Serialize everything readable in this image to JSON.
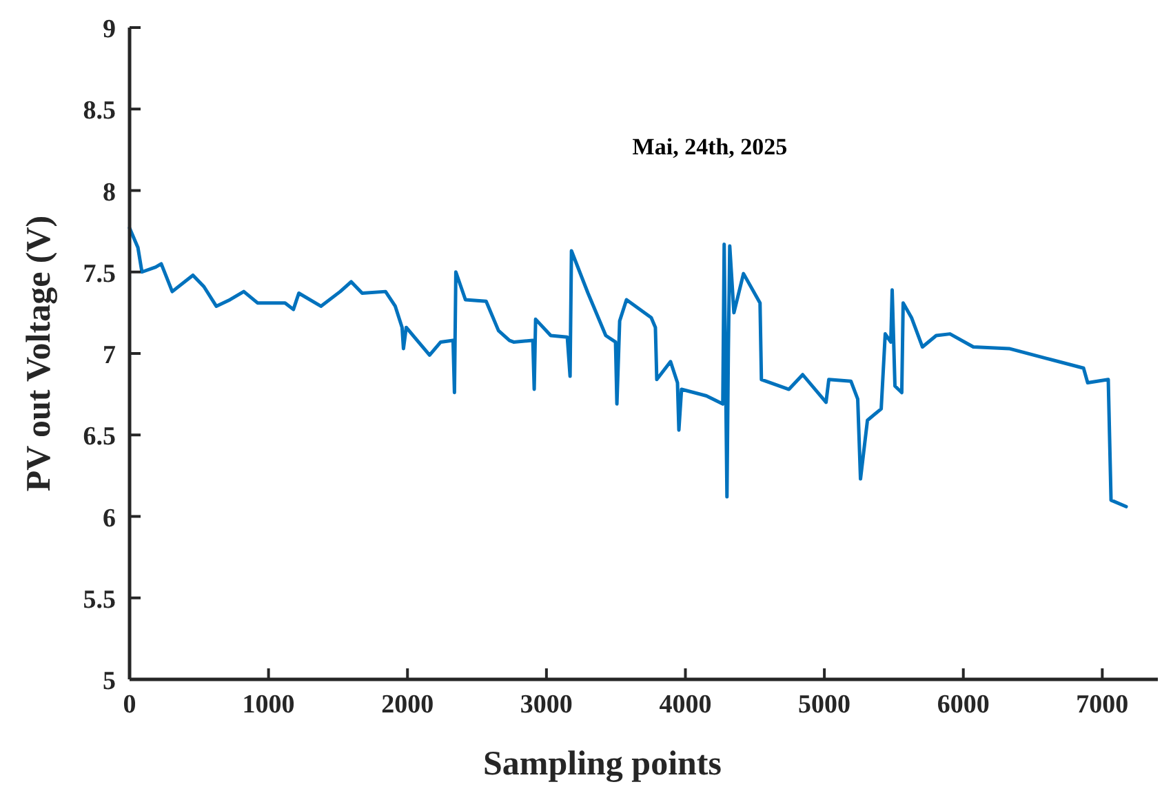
{
  "chart_data": {
    "type": "line",
    "xlabel": "Sampling points",
    "ylabel": "PV out Voltage (V)",
    "annotations": [
      "Mai, 24th, 2025"
    ],
    "xlim": [
      0,
      7400
    ],
    "xticks": [
      0,
      1000,
      2000,
      3000,
      4000,
      5000,
      6000,
      7000
    ],
    "ylim": [
      5,
      9
    ],
    "yticks": [
      5,
      5.5,
      6,
      6.5,
      7,
      7.5,
      8,
      8.5,
      9
    ],
    "grid": false,
    "marker": "none",
    "line_style": "solid",
    "series": [
      {
        "color": "#0072bd",
        "x": [
          0,
          60,
          89,
          188,
          228,
          307,
          456,
          535,
          624,
          723,
          822,
          921,
          1119,
          1179,
          1218,
          1377,
          1516,
          1595,
          1674,
          1842,
          1912,
          1961,
          1971,
          1991,
          2070,
          2159,
          2239,
          2328,
          2338,
          2348,
          2417,
          2566,
          2655,
          2734,
          2764,
          2902,
          2912,
          2922,
          3031,
          3150,
          3170,
          3180,
          3299,
          3427,
          3497,
          3507,
          3527,
          3576,
          3754,
          3784,
          3794,
          3893,
          3943,
          3953,
          3972,
          4151,
          4269,
          4279,
          4299,
          4309,
          4319,
          4349,
          4418,
          4537,
          4547,
          4745,
          4844,
          5012,
          5032,
          5191,
          5240,
          5260,
          5310,
          5409,
          5438,
          5478,
          5488,
          5508,
          5557,
          5567,
          5627,
          5706,
          5805,
          5904,
          6072,
          6330,
          6597,
          6865,
          6895,
          7043,
          7063,
          7172
        ],
        "values": [
          7.77,
          7.65,
          7.5,
          7.53,
          7.55,
          7.38,
          7.48,
          7.41,
          7.29,
          7.33,
          7.38,
          7.31,
          7.31,
          7.27,
          7.37,
          7.29,
          7.38,
          7.44,
          7.37,
          7.38,
          7.29,
          7.16,
          7.03,
          7.16,
          7.08,
          6.99,
          7.07,
          7.08,
          6.76,
          7.5,
          7.33,
          7.32,
          7.14,
          7.08,
          7.07,
          7.08,
          6.78,
          7.21,
          7.11,
          7.1,
          6.86,
          7.63,
          7.37,
          7.11,
          7.07,
          6.69,
          7.2,
          7.33,
          7.22,
          7.16,
          6.84,
          6.95,
          6.82,
          6.53,
          6.78,
          6.74,
          6.69,
          7.67,
          6.12,
          7.01,
          7.66,
          7.25,
          7.49,
          7.31,
          6.84,
          6.78,
          6.87,
          6.7,
          6.84,
          6.83,
          6.72,
          6.23,
          6.59,
          6.66,
          7.12,
          7.07,
          7.39,
          6.8,
          6.76,
          7.31,
          7.22,
          7.04,
          7.11,
          7.12,
          7.04,
          7.03,
          6.97,
          6.91,
          6.82,
          6.84,
          6.1,
          6.06
        ]
      }
    ]
  }
}
